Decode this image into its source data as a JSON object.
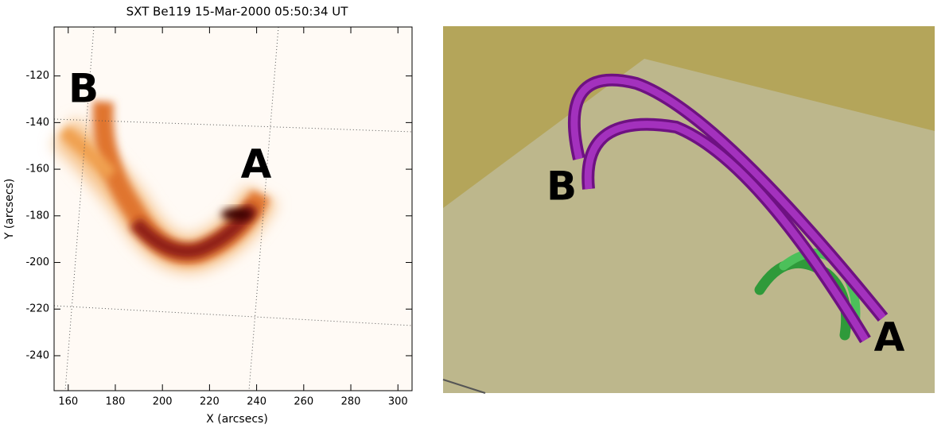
{
  "chart_data": {
    "type": "image",
    "title": "SXT Be119 15-Mar-2000 05:50:34 UT",
    "x_label": "X (arcsecs)",
    "y_label": "Y (arcsecs)",
    "xlim": [
      154,
      306
    ],
    "ylim": [
      -255,
      -99
    ],
    "xticks": [
      160,
      180,
      200,
      220,
      240,
      260,
      280,
      300
    ],
    "yticks": [
      -120,
      -140,
      -160,
      -180,
      -200,
      -220,
      -240
    ],
    "annotations": [
      "B",
      "A"
    ]
  },
  "rendering": {
    "labels": [
      "B",
      "A"
    ]
  }
}
